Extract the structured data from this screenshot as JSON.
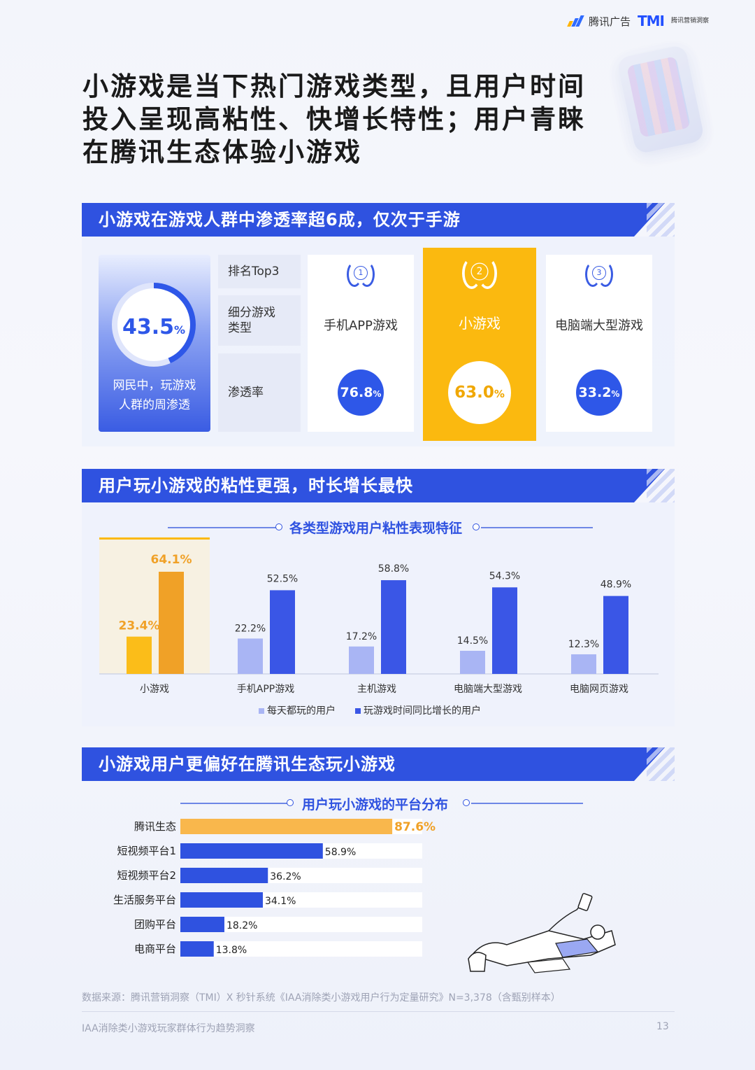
{
  "brand": {
    "logo1": "腾讯广告",
    "logo2": "TMI",
    "logo2_sub": "腾讯营销洞察"
  },
  "title": "小游戏是当下热门游戏类型，且用户时间投入呈现高粘性、快增长特性；用户青睐在腾讯生态体验小游戏",
  "section1": {
    "heading": "小游戏在游戏人群中渗透率超6成，仅次于手游",
    "penetration": {
      "value": "43.5",
      "unit": "%",
      "fraction": 0.435,
      "label_line1": "网民中，玩游戏",
      "label_line2": "人群的周渗透"
    },
    "row_labels": [
      "排名Top3",
      "细分游戏类型",
      "渗透率"
    ],
    "ranks": [
      {
        "rank": "1",
        "name": "手机APP游戏",
        "rate": "76.8",
        "unit": "%"
      },
      {
        "rank": "2",
        "name": "小游戏",
        "rate": "63.0",
        "unit": "%"
      },
      {
        "rank": "3",
        "name": "电脑端大型游戏",
        "rate": "33.2",
        "unit": "%"
      }
    ]
  },
  "section2": {
    "heading": "用户玩小游戏的粘性更强，时长增长最快",
    "chart_title": "各类型游戏用户粘性表现特征"
  },
  "section3": {
    "heading": "小游戏用户更偏好在腾讯生态玩小游戏",
    "chart_title": "用户玩小游戏的平台分布"
  },
  "chart_data": [
    {
      "type": "bar",
      "title": "各类型游戏用户粘性表现特征",
      "categories": [
        "小游戏",
        "手机APP游戏",
        "主机游戏",
        "电脑端大型游戏",
        "电脑网页游戏"
      ],
      "series": [
        {
          "name": "每天都玩的用户",
          "values": [
            23.4,
            22.2,
            17.2,
            14.5,
            12.3
          ],
          "labels": [
            "23.4%",
            "22.2%",
            "17.2%",
            "14.5%",
            "12.3%"
          ]
        },
        {
          "name": "玩游戏时间同比增长的用户",
          "values": [
            64.1,
            52.5,
            58.8,
            54.3,
            48.9
          ],
          "labels": [
            "64.1%",
            "52.5%",
            "58.8%",
            "54.3%",
            "48.9%"
          ]
        }
      ],
      "ylim": [
        0,
        70
      ],
      "highlight_category": "小游戏",
      "colors": {
        "daily": "#a9b5f4",
        "growth": "#3a56e6",
        "hi_daily": "#fbbd19",
        "hi_growth": "#f0a127"
      }
    },
    {
      "type": "bar",
      "orientation": "horizontal",
      "title": "用户玩小游戏的平台分布",
      "categories": [
        "腾讯生态",
        "短视频平台1",
        "短视频平台2",
        "生活服务平台",
        "团购平台",
        "电商平台"
      ],
      "values": [
        87.6,
        58.9,
        36.2,
        34.1,
        18.2,
        13.8
      ],
      "labels": [
        "87.6%",
        "58.9%",
        "36.2%",
        "34.1%",
        "18.2%",
        "13.8%"
      ],
      "xlim": [
        0,
        100
      ],
      "colors": {
        "highlight": "#f9b74c",
        "bar": "#2f52e0"
      }
    }
  ],
  "footer": {
    "source": "数据来源：腾讯营销洞察（TMI）X 秒针系统《IAA消除类小游戏用户行为定量研究》N=3,378（含甄别样本）",
    "report": "IAA消除类小游戏玩家群体行为趋势洞察",
    "page": "13"
  }
}
